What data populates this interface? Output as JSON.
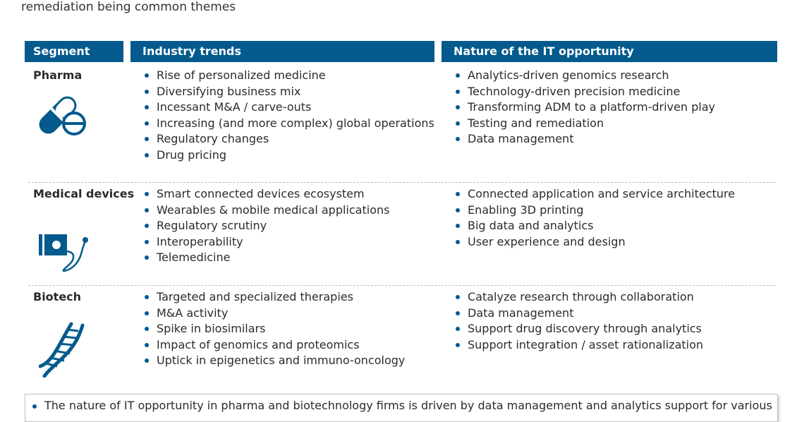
{
  "intro_text": "remediation being common themes",
  "headers": {
    "segment": "Segment",
    "trends": "Industry trends",
    "opportunity": "Nature of the IT opportunity"
  },
  "rows": [
    {
      "segment": "Pharma",
      "icon": "pill-capsule-icon",
      "trends": [
        "Rise of personalized medicine",
        "Diversifying business mix",
        "Incessant M&A / carve-outs",
        "Increasing (and more complex) global operations",
        "Regulatory changes",
        "Drug pricing"
      ],
      "opportunities": [
        "Analytics-driven genomics research",
        "Technology-driven precision medicine",
        "Transforming ADM to a platform-driven play",
        "Testing and remediation",
        "Data management"
      ]
    },
    {
      "segment": "Medical devices",
      "icon": "medical-device-icon",
      "trends": [
        "Smart connected devices ecosystem",
        "Wearables & mobile medical applications",
        "Regulatory scrutiny",
        "Interoperability",
        "Telemedicine"
      ],
      "opportunities": [
        "Connected application and service architecture",
        "Enabling 3D printing",
        "Big data and analytics",
        "User experience and design"
      ]
    },
    {
      "segment": "Biotech",
      "icon": "dna-helix-icon",
      "trends": [
        "Targeted and specialized therapies",
        "M&A activity",
        "Spike in biosimilars",
        "Impact of genomics and proteomics",
        "Uptick in epigenetics and immuno-oncology"
      ],
      "opportunities": [
        "Catalyze research through collaboration",
        "Data management",
        "Support drug discovery through analytics",
        "Support integration / asset rationalization"
      ]
    }
  ],
  "footnote": "The nature of IT opportunity in pharma and biotechnology firms is driven by data management and analytics support for various",
  "colors": {
    "header_bg": "#045a8d",
    "icon": "#045a8d",
    "bullet": "#045a8d"
  }
}
